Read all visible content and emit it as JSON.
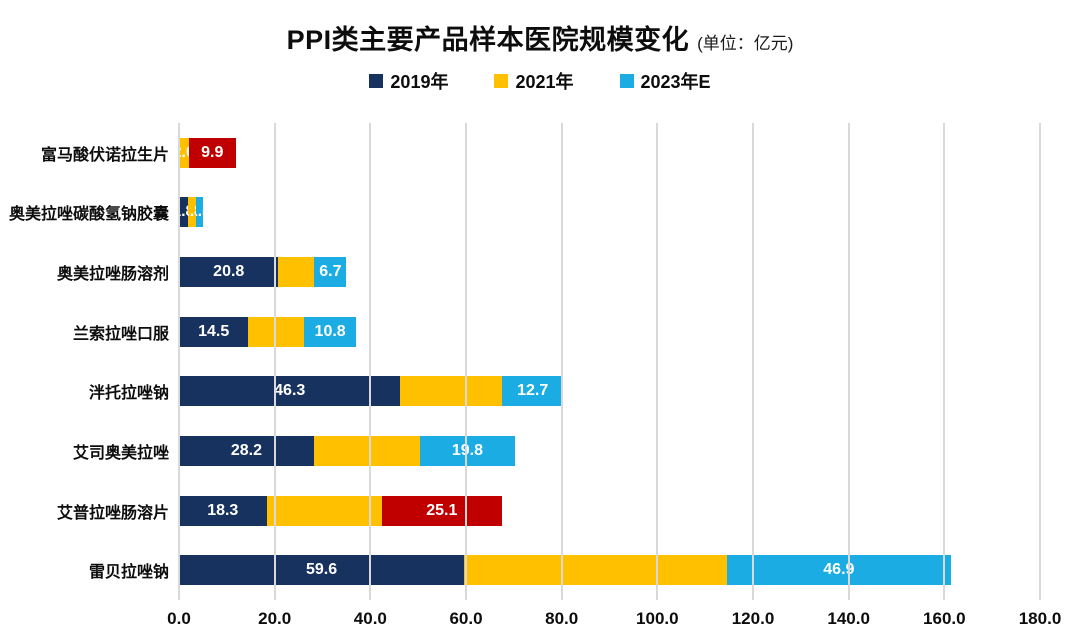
{
  "title": {
    "main": "PPI类主要产品样本医院规模变化",
    "unit": "(单位：亿元)"
  },
  "legend": [
    {
      "label": "2019年",
      "color": "#17325E"
    },
    {
      "label": "2021年",
      "color": "#FFC000"
    },
    {
      "label": "2023年E",
      "color": "#1BACE4"
    }
  ],
  "colors": {
    "highlight_red": "#C00000",
    "gridline": "#D9D9D9",
    "bar_value_text": "#FFFFFF",
    "text": "#0D0D0D"
  },
  "chart_data": {
    "type": "bar",
    "orientation": "horizontal-stacked",
    "title": "PPI类主要产品样本医院规模变化",
    "unit_note": "(单位：亿元)",
    "xlim": [
      0,
      180
    ],
    "x_tick_labels": [
      "0.0",
      "20.0",
      "40.0",
      "60.0",
      "80.0",
      "100.0",
      "120.0",
      "140.0",
      "160.0",
      "180.0"
    ],
    "grid": "vertical",
    "legend_position": "top-center",
    "series_names": [
      "2019年",
      "2021年",
      "2023年E"
    ],
    "categories": [
      "富马酸伏诺拉生片",
      "奥美拉唑碳酸氢钠胶囊",
      "奥美拉唑肠溶剂",
      "兰索拉唑口服",
      "泮托拉唑钠",
      "艾司奥美拉唑",
      "艾普拉唑肠溶片",
      "雷贝拉唑钠"
    ],
    "rows": [
      {
        "category": "富马酸伏诺拉生片",
        "segments": [
          {
            "series": 0,
            "value": 0,
            "label": ""
          },
          {
            "series": 1,
            "value": 2.0,
            "label": "2.0"
          },
          {
            "series": 2,
            "value": 9.9,
            "label": "9.9",
            "highlight": true
          }
        ]
      },
      {
        "category": "奥美拉唑碳酸氢钠胶囊",
        "segments": [
          {
            "series": 0,
            "value": 1.8,
            "label": "1.8"
          },
          {
            "series": 1,
            "value": 1.8,
            "label": "1.8"
          },
          {
            "series": 2,
            "value": 1.5,
            "label": "1.5"
          }
        ]
      },
      {
        "category": "奥美拉唑肠溶剂",
        "segments": [
          {
            "series": 0,
            "value": 20.8,
            "label": "20.8"
          },
          {
            "series": 1,
            "value": 7.5,
            "label": ""
          },
          {
            "series": 2,
            "value": 6.7,
            "label": "6.7"
          }
        ]
      },
      {
        "category": "兰索拉唑口服",
        "segments": [
          {
            "series": 0,
            "value": 14.5,
            "label": "14.5"
          },
          {
            "series": 1,
            "value": 11.7,
            "label": ""
          },
          {
            "series": 2,
            "value": 10.8,
            "label": "10.8"
          }
        ]
      },
      {
        "category": "泮托拉唑钠",
        "segments": [
          {
            "series": 0,
            "value": 46.3,
            "label": "46.3"
          },
          {
            "series": 1,
            "value": 21.3,
            "label": ""
          },
          {
            "series": 2,
            "value": 12.7,
            "label": "12.7"
          }
        ]
      },
      {
        "category": "艾司奥美拉唑",
        "segments": [
          {
            "series": 0,
            "value": 28.2,
            "label": "28.2"
          },
          {
            "series": 1,
            "value": 22.2,
            "label": ""
          },
          {
            "series": 2,
            "value": 19.8,
            "label": "19.8"
          }
        ]
      },
      {
        "category": "艾普拉唑肠溶片",
        "segments": [
          {
            "series": 0,
            "value": 18.3,
            "label": "18.3"
          },
          {
            "series": 1,
            "value": 24.1,
            "label": ""
          },
          {
            "series": 2,
            "value": 25.1,
            "label": "25.1",
            "highlight": true
          }
        ]
      },
      {
        "category": "雷贝拉唑钠",
        "segments": [
          {
            "series": 0,
            "value": 59.6,
            "label": "59.6"
          },
          {
            "series": 1,
            "value": 54.9,
            "label": ""
          },
          {
            "series": 2,
            "value": 46.9,
            "label": "46.9"
          }
        ]
      }
    ]
  }
}
